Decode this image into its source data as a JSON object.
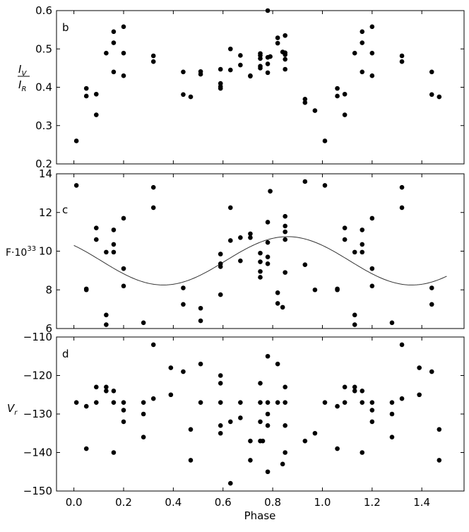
{
  "chart_data": [
    {
      "type": "scatter",
      "panel_label": "b",
      "ylabel_num": "I",
      "ylabel_num_sub": "V",
      "ylabel_den": "I",
      "ylabel_den_sub": "R",
      "ylim": [
        0.2,
        0.6
      ],
      "yticks": [
        "0.2",
        "0.3",
        "0.4",
        "0.5",
        "0.6"
      ],
      "xlim": [
        -0.07,
        1.57
      ],
      "grid": false,
      "points": [
        [
          0.01,
          0.26
        ],
        [
          0.05,
          0.397
        ],
        [
          0.05,
          0.377
        ],
        [
          0.09,
          0.382
        ],
        [
          0.09,
          0.328
        ],
        [
          0.13,
          0.489
        ],
        [
          0.16,
          0.545
        ],
        [
          0.16,
          0.516
        ],
        [
          0.16,
          0.44
        ],
        [
          0.2,
          0.558
        ],
        [
          0.2,
          0.489
        ],
        [
          0.2,
          0.43
        ],
        [
          0.32,
          0.482
        ],
        [
          0.32,
          0.467
        ],
        [
          0.44,
          0.44
        ],
        [
          0.44,
          0.381
        ],
        [
          0.47,
          0.375
        ],
        [
          0.51,
          0.441
        ],
        [
          0.51,
          0.434
        ],
        [
          0.59,
          0.447
        ],
        [
          0.59,
          0.41
        ],
        [
          0.59,
          0.402
        ],
        [
          0.59,
          0.397
        ],
        [
          0.63,
          0.5
        ],
        [
          0.63,
          0.445
        ],
        [
          0.67,
          0.483
        ],
        [
          0.67,
          0.458
        ],
        [
          0.71,
          0.43
        ],
        [
          0.71,
          0.429
        ],
        [
          0.75,
          0.488
        ],
        [
          0.75,
          0.483
        ],
        [
          0.75,
          0.475
        ],
        [
          0.75,
          0.455
        ],
        [
          0.75,
          0.45
        ],
        [
          0.78,
          0.6
        ],
        [
          0.78,
          0.478
        ],
        [
          0.78,
          0.461
        ],
        [
          0.78,
          0.438
        ],
        [
          0.79,
          0.48
        ],
        [
          0.82,
          0.529
        ],
        [
          0.82,
          0.515
        ],
        [
          0.84,
          0.492
        ],
        [
          0.85,
          0.535
        ],
        [
          0.85,
          0.49
        ],
        [
          0.85,
          0.485
        ],
        [
          0.85,
          0.473
        ],
        [
          0.85,
          0.447
        ],
        [
          0.93,
          0.369
        ],
        [
          0.93,
          0.36
        ],
        [
          0.97,
          0.339
        ],
        [
          1.01,
          0.26
        ],
        [
          1.06,
          0.397
        ],
        [
          1.06,
          0.377
        ],
        [
          1.09,
          0.382
        ],
        [
          1.09,
          0.328
        ],
        [
          1.13,
          0.489
        ],
        [
          1.16,
          0.545
        ],
        [
          1.16,
          0.516
        ],
        [
          1.16,
          0.44
        ],
        [
          1.2,
          0.558
        ],
        [
          1.2,
          0.489
        ],
        [
          1.2,
          0.43
        ],
        [
          1.32,
          0.482
        ],
        [
          1.32,
          0.467
        ],
        [
          1.44,
          0.44
        ],
        [
          1.44,
          0.381
        ],
        [
          1.47,
          0.375
        ]
      ]
    },
    {
      "type": "scatter",
      "panel_label": "c",
      "ylabel": "F·10",
      "ylabel_sup": "33",
      "ylim": [
        6,
        14
      ],
      "yticks": [
        "6",
        "8",
        "10",
        "12",
        "14"
      ],
      "xlim": [
        -0.07,
        1.57
      ],
      "grid": false,
      "fit_curve": {
        "form": "sinusoid",
        "mean": 9.5,
        "amplitude": 1.25,
        "max_at_phase": 0.86,
        "period": 1.0,
        "x_range": [
          0.0,
          1.5
        ]
      },
      "points": [
        [
          0.01,
          13.4
        ],
        [
          0.05,
          8.05
        ],
        [
          0.05,
          8.0
        ],
        [
          0.09,
          11.2
        ],
        [
          0.09,
          10.6
        ],
        [
          0.13,
          9.95
        ],
        [
          0.13,
          6.7
        ],
        [
          0.13,
          6.2
        ],
        [
          0.16,
          11.1
        ],
        [
          0.16,
          10.35
        ],
        [
          0.16,
          9.95
        ],
        [
          0.2,
          11.7
        ],
        [
          0.2,
          9.1
        ],
        [
          0.2,
          8.2
        ],
        [
          0.28,
          6.3
        ],
        [
          0.32,
          13.3
        ],
        [
          0.32,
          12.25
        ],
        [
          0.44,
          8.1
        ],
        [
          0.44,
          7.25
        ],
        [
          0.51,
          7.05
        ],
        [
          0.51,
          6.4
        ],
        [
          0.59,
          9.85
        ],
        [
          0.59,
          9.35
        ],
        [
          0.59,
          9.2
        ],
        [
          0.59,
          7.75
        ],
        [
          0.63,
          12.25
        ],
        [
          0.63,
          10.55
        ],
        [
          0.67,
          10.7
        ],
        [
          0.67,
          9.5
        ],
        [
          0.71,
          10.9
        ],
        [
          0.71,
          10.7
        ],
        [
          0.75,
          9.9
        ],
        [
          0.75,
          9.45
        ],
        [
          0.75,
          8.95
        ],
        [
          0.75,
          8.65
        ],
        [
          0.78,
          11.5
        ],
        [
          0.78,
          10.45
        ],
        [
          0.78,
          9.7
        ],
        [
          0.78,
          9.35
        ],
        [
          0.79,
          13.1
        ],
        [
          0.82,
          7.85
        ],
        [
          0.82,
          7.3
        ],
        [
          0.84,
          7.1
        ],
        [
          0.85,
          11.8
        ],
        [
          0.85,
          11.3
        ],
        [
          0.85,
          11.0
        ],
        [
          0.85,
          10.6
        ],
        [
          0.85,
          8.9
        ],
        [
          0.93,
          13.6
        ],
        [
          0.93,
          9.3
        ],
        [
          0.97,
          8.0
        ],
        [
          1.01,
          13.4
        ],
        [
          1.06,
          8.05
        ],
        [
          1.06,
          8.0
        ],
        [
          1.09,
          11.2
        ],
        [
          1.09,
          10.6
        ],
        [
          1.13,
          9.95
        ],
        [
          1.13,
          6.7
        ],
        [
          1.13,
          6.2
        ],
        [
          1.16,
          11.1
        ],
        [
          1.16,
          10.35
        ],
        [
          1.16,
          9.95
        ],
        [
          1.2,
          11.7
        ],
        [
          1.2,
          9.1
        ],
        [
          1.2,
          8.2
        ],
        [
          1.28,
          6.3
        ],
        [
          1.32,
          13.3
        ],
        [
          1.32,
          12.25
        ],
        [
          1.44,
          8.1
        ],
        [
          1.44,
          7.25
        ]
      ]
    },
    {
      "type": "scatter",
      "panel_label": "d",
      "ylabel": "V",
      "ylabel_sub": "r",
      "xlabel": "Phase",
      "ylim": [
        -150,
        -110
      ],
      "yticks": [
        "−110",
        "−120",
        "−130",
        "−140",
        "−150"
      ],
      "ytick_values": [
        -110,
        -120,
        -130,
        -140,
        -150
      ],
      "xlim": [
        -0.07,
        1.57
      ],
      "xticks": [
        "0.0",
        "0.2",
        "0.4",
        "0.6",
        "0.8",
        "1.0",
        "1.2",
        "1.4"
      ],
      "xtick_values": [
        0.0,
        0.2,
        0.4,
        0.6,
        0.8,
        1.0,
        1.2,
        1.4
      ],
      "grid": false,
      "points": [
        [
          0.01,
          -127
        ],
        [
          0.05,
          -128
        ],
        [
          0.05,
          -139
        ],
        [
          0.09,
          -123
        ],
        [
          0.09,
          -127
        ],
        [
          0.13,
          -123
        ],
        [
          0.13,
          -124
        ],
        [
          0.16,
          -124
        ],
        [
          0.16,
          -127
        ],
        [
          0.16,
          -140
        ],
        [
          0.2,
          -127
        ],
        [
          0.2,
          -129
        ],
        [
          0.2,
          -132
        ],
        [
          0.28,
          -127
        ],
        [
          0.28,
          -130
        ],
        [
          0.28,
          -136
        ],
        [
          0.32,
          -112
        ],
        [
          0.32,
          -126
        ],
        [
          0.39,
          -118
        ],
        [
          0.39,
          -125
        ],
        [
          0.44,
          -119
        ],
        [
          0.47,
          -134
        ],
        [
          0.47,
          -142
        ],
        [
          0.51,
          -117
        ],
        [
          0.51,
          -127
        ],
        [
          0.59,
          -120
        ],
        [
          0.59,
          -122
        ],
        [
          0.59,
          -127
        ],
        [
          0.59,
          -133
        ],
        [
          0.59,
          -135
        ],
        [
          0.63,
          -132
        ],
        [
          0.63,
          -148
        ],
        [
          0.67,
          -127
        ],
        [
          0.67,
          -131
        ],
        [
          0.71,
          -137
        ],
        [
          0.71,
          -142
        ],
        [
          0.75,
          -122
        ],
        [
          0.75,
          -127
        ],
        [
          0.75,
          -132
        ],
        [
          0.75,
          -137
        ],
        [
          0.76,
          -137
        ],
        [
          0.78,
          -115
        ],
        [
          0.78,
          -127
        ],
        [
          0.78,
          -130
        ],
        [
          0.78,
          -133
        ],
        [
          0.78,
          -145
        ],
        [
          0.82,
          -117
        ],
        [
          0.82,
          -127
        ],
        [
          0.84,
          -143
        ],
        [
          0.85,
          -123
        ],
        [
          0.85,
          -127
        ],
        [
          0.85,
          -133
        ],
        [
          0.85,
          -140
        ],
        [
          0.93,
          -137
        ],
        [
          0.97,
          -135
        ],
        [
          1.01,
          -127
        ],
        [
          1.06,
          -128
        ],
        [
          1.06,
          -139
        ],
        [
          1.09,
          -123
        ],
        [
          1.09,
          -127
        ],
        [
          1.13,
          -123
        ],
        [
          1.13,
          -124
        ],
        [
          1.16,
          -124
        ],
        [
          1.16,
          -127
        ],
        [
          1.16,
          -140
        ],
        [
          1.2,
          -127
        ],
        [
          1.2,
          -129
        ],
        [
          1.2,
          -132
        ],
        [
          1.28,
          -127
        ],
        [
          1.28,
          -130
        ],
        [
          1.28,
          -136
        ],
        [
          1.32,
          -112
        ],
        [
          1.32,
          -126
        ],
        [
          1.39,
          -118
        ],
        [
          1.39,
          -125
        ],
        [
          1.44,
          -119
        ],
        [
          1.47,
          -134
        ],
        [
          1.47,
          -142
        ]
      ]
    }
  ]
}
